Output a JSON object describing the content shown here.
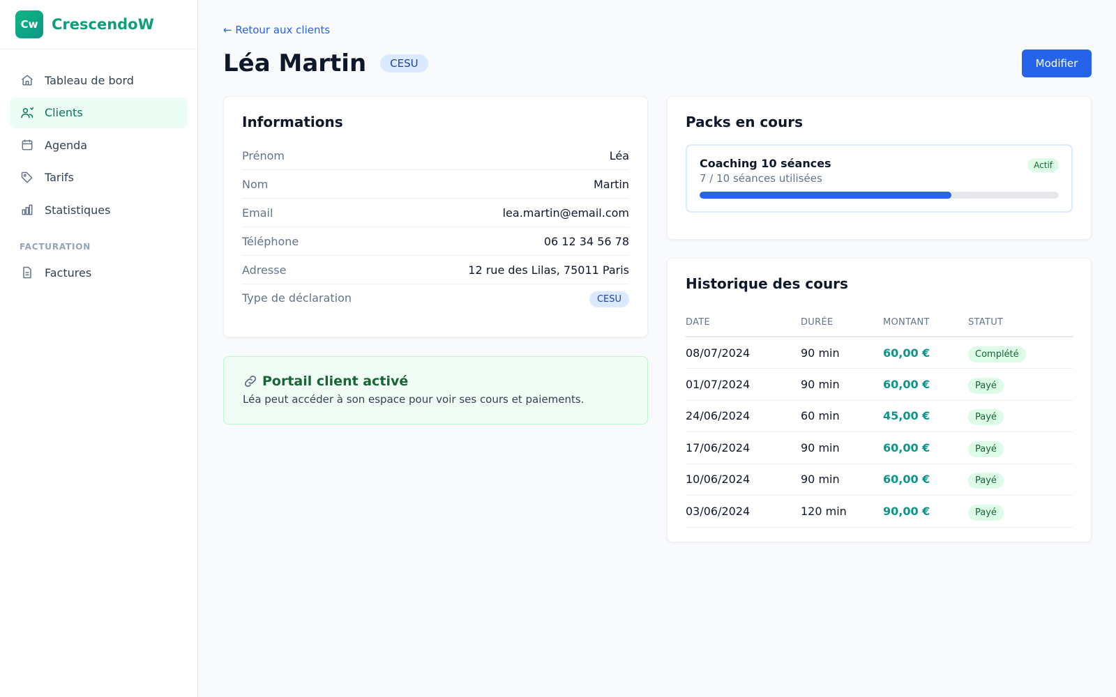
{
  "app": {
    "logo_text": "Cw",
    "name": "CrescendoW"
  },
  "sidebar": {
    "items": [
      {
        "label": "Tableau de bord",
        "icon": "home-icon",
        "active": false
      },
      {
        "label": "Clients",
        "icon": "users-icon",
        "active": true
      },
      {
        "label": "Agenda",
        "icon": "calendar-icon",
        "active": false
      },
      {
        "label": "Tarifs",
        "icon": "tag-icon",
        "active": false
      },
      {
        "label": "Statistiques",
        "icon": "bar-chart-icon",
        "active": false
      }
    ],
    "section_label": "FACTURATION",
    "section_items": [
      {
        "label": "Factures",
        "icon": "document-icon",
        "active": false
      }
    ]
  },
  "header": {
    "back_link": "← Retour aux clients",
    "title": "Léa Martin",
    "badge": "CESU",
    "edit_button": "Modifier"
  },
  "info": {
    "title": "Informations",
    "rows": [
      {
        "label": "Prénom",
        "value": "Léa"
      },
      {
        "label": "Nom",
        "value": "Martin"
      },
      {
        "label": "Email",
        "value": "lea.martin@email.com"
      },
      {
        "label": "Téléphone",
        "value": "06 12 34 56 78"
      },
      {
        "label": "Adresse",
        "value": "12 rue des Lilas, 75011 Paris"
      }
    ],
    "declaration_label": "Type de déclaration",
    "declaration_value": "CESU"
  },
  "portal": {
    "title": "Portail client activé",
    "text": "Léa peut accéder à son espace pour voir ses cours et paiements."
  },
  "packs": {
    "title": "Packs en cours",
    "items": [
      {
        "name": "Coaching 10 séances",
        "usage": "7 / 10 séances utilisées",
        "status": "Actif",
        "progress": 0.7
      }
    ]
  },
  "history": {
    "title": "Historique des cours",
    "columns": [
      "DATE",
      "DURÉE",
      "MONTANT",
      "STATUT"
    ],
    "rows": [
      {
        "date": "08/07/2024",
        "duration": "90 min",
        "amount": "60,00 €",
        "status": "Complété"
      },
      {
        "date": "01/07/2024",
        "duration": "90 min",
        "amount": "60,00 €",
        "status": "Payé"
      },
      {
        "date": "24/06/2024",
        "duration": "60 min",
        "amount": "45,00 €",
        "status": "Payé"
      },
      {
        "date": "17/06/2024",
        "duration": "90 min",
        "amount": "60,00 €",
        "status": "Payé"
      },
      {
        "date": "10/06/2024",
        "duration": "90 min",
        "amount": "60,00 €",
        "status": "Payé"
      },
      {
        "date": "03/06/2024",
        "duration": "120 min",
        "amount": "90,00 €",
        "status": "Payé"
      }
    ]
  },
  "colors": {
    "brand": "#0d9f7a",
    "primary": "#2563eb",
    "amount": "#0d9488"
  }
}
